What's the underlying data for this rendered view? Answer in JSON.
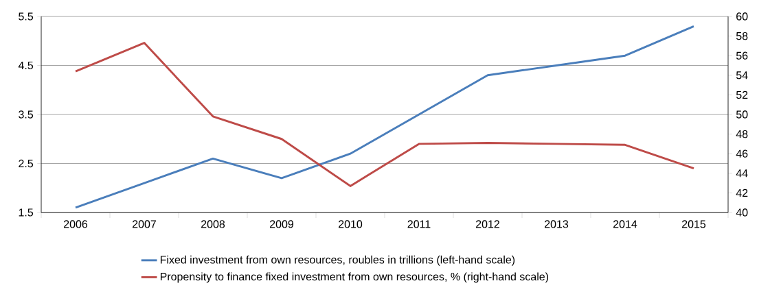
{
  "chart_data": {
    "type": "line",
    "categories": [
      "2006",
      "2007",
      "2008",
      "2009",
      "2010",
      "2011",
      "2012",
      "2013",
      "2014",
      "2015"
    ],
    "series": [
      {
        "name": "Fixed investment from own resources, roubles in trillions (left-hand scale)",
        "color": "#4a7ebb",
        "values": [
          1.6,
          2.1,
          2.6,
          2.2,
          2.7,
          3.5,
          4.3,
          4.5,
          4.7,
          5.3
        ]
      },
      {
        "name": "Propensity to finance fixed investment from own resources, % (right-hand scale)",
        "color": "#be4b48",
        "axis": "y2",
        "values": [
          54.4,
          57.3,
          49.8,
          47.5,
          42.7,
          47.0,
          47.1,
          47.0,
          46.9,
          44.5
        ]
      }
    ],
    "ylim": [
      1.5,
      5.5
    ],
    "yticks": [
      1.5,
      2.5,
      3.5,
      4.5,
      5.5
    ],
    "y2lim": [
      40,
      60
    ],
    "y2ticks": [
      40,
      42,
      44,
      46,
      48,
      50,
      52,
      54,
      56,
      58,
      60
    ],
    "grid": "y",
    "legend": "bottom"
  }
}
